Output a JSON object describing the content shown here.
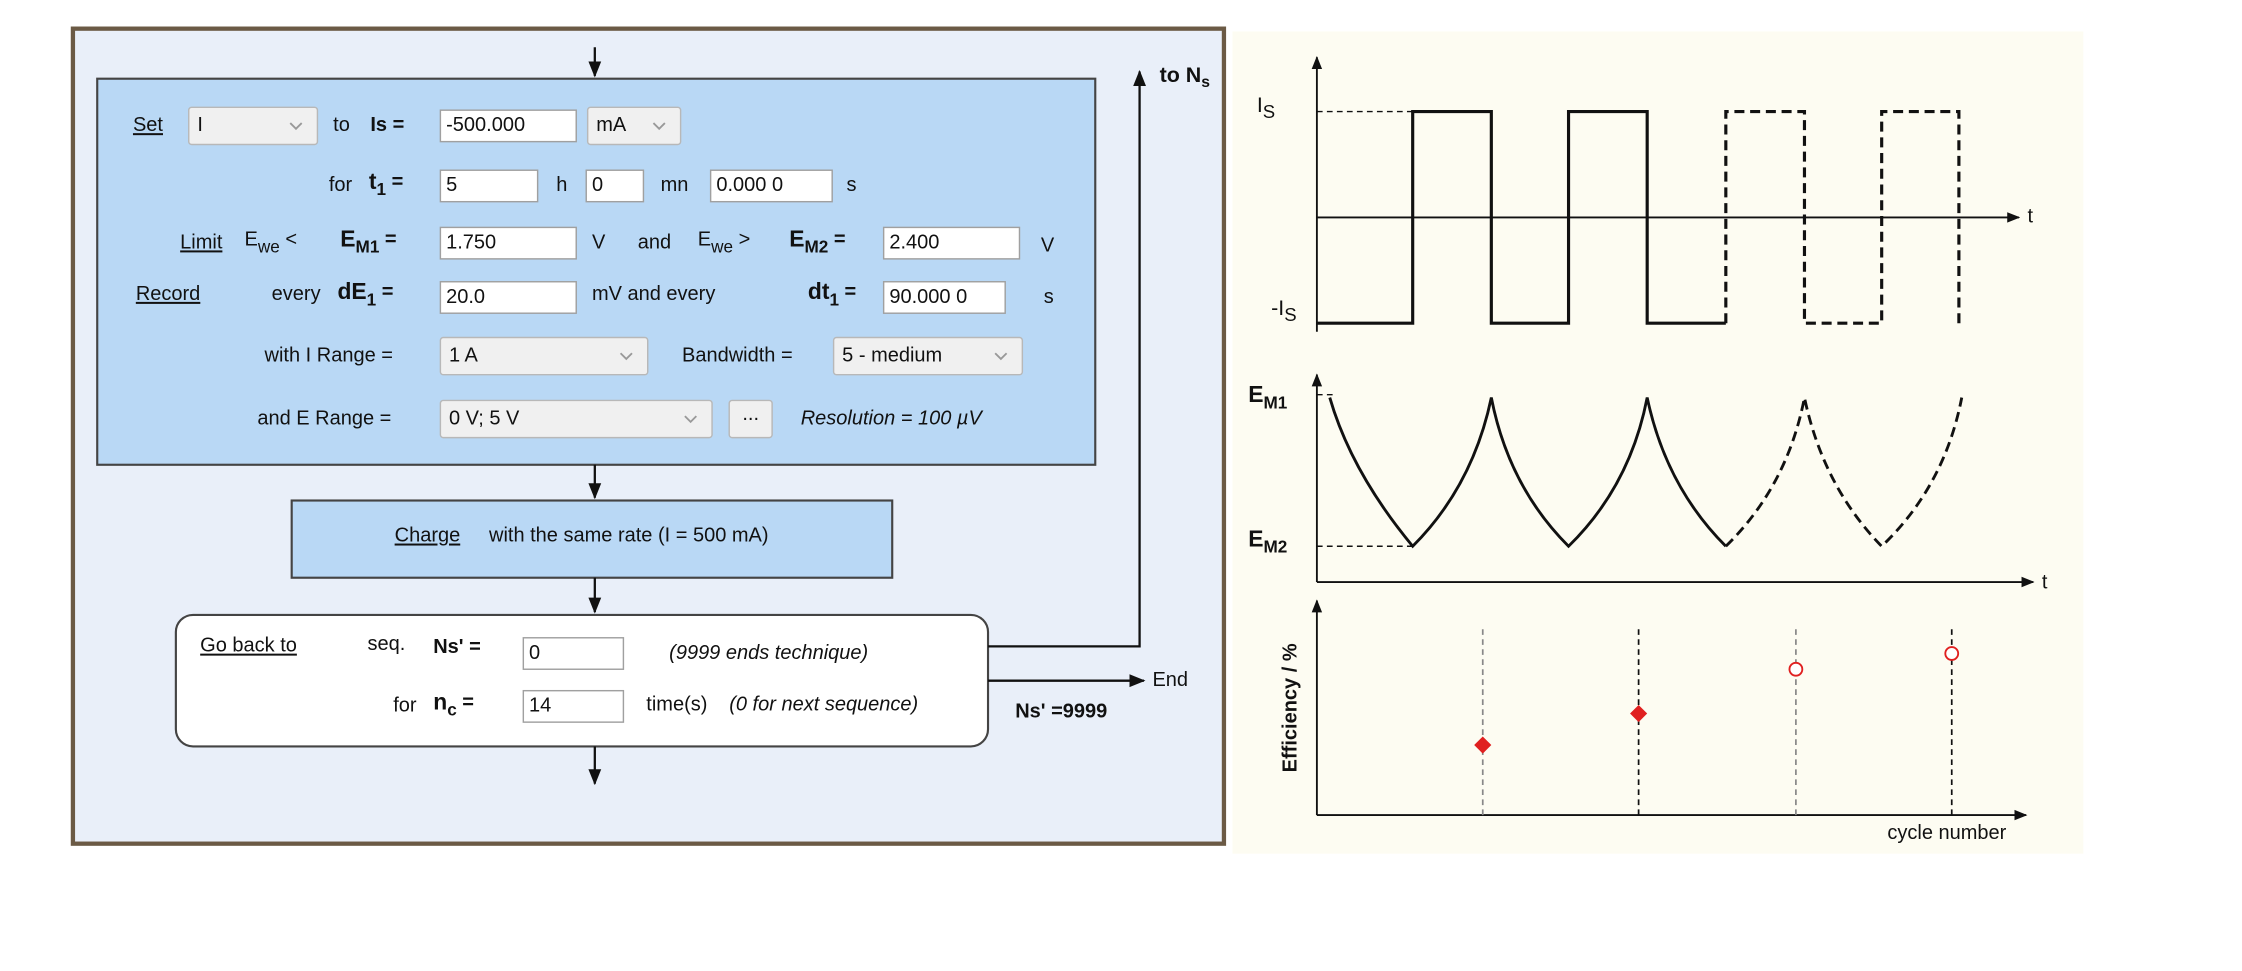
{
  "dialog": {
    "step": {
      "set": "Set",
      "control": "I",
      "to": "to",
      "is_label": "Is =",
      "is_value": "-500.000",
      "is_unit": "mA",
      "for": "for",
      "t1": {
        "main": "t",
        "sub": "1",
        "tail": " ="
      },
      "t1_h": "5",
      "h": "h",
      "t1_mn": "0",
      "mn": "mn",
      "t1_s": "0.000 0",
      "s": "s",
      "limit": "Limit",
      "ewe_lt": {
        "main": "E",
        "sub": "we",
        "tail": " <"
      },
      "em1": {
        "main": "E",
        "sub": "M1",
        "tail": " ="
      },
      "em1_value": "1.750",
      "em1_unit": "V",
      "and": "and",
      "ewe_gt": {
        "main": "E",
        "sub": "we",
        "tail": " >"
      },
      "em2": {
        "main": "E",
        "sub": "M2",
        "tail": " ="
      },
      "em2_value": "2.400",
      "em2_unit": "V",
      "record": "Record",
      "every": "every",
      "de1": {
        "main": "dE",
        "sub": "1",
        "tail": " ="
      },
      "de1_value": "20.0",
      "de1_unit": "mV and every",
      "dt1": {
        "main": "dt",
        "sub": "1",
        "tail": " ="
      },
      "dt1_value": "90.000 0",
      "dt1_unit": "s",
      "i_range_label": "with I Range =",
      "i_range": "1 A",
      "bandwidth_label": "Bandwidth =",
      "bandwidth": "5 - medium",
      "e_range_label": "and E Range =",
      "e_range": "0 V; 5 V",
      "more": "...",
      "resolution": "Resolution = 100 µV"
    },
    "charge": {
      "link": "Charge",
      "text": "with the same rate (I = 500 mA)"
    },
    "goback": {
      "link": "Go back to",
      "seq": "seq.",
      "ns_label": "Ns' =",
      "ns_value": "0",
      "ns_note": "(9999 ends technique)",
      "for": "for",
      "nc": {
        "main": "n",
        "sub": "c",
        "tail": " ="
      },
      "nc_value": "14",
      "times": "time(s)",
      "nc_note": "(0 for next sequence)"
    },
    "flow": {
      "to_ns": {
        "main": "to N",
        "sub": "s"
      },
      "end": "End",
      "ns_end": "Ns' =9999"
    }
  },
  "diagram": {
    "current": {
      "is": {
        "main": "I",
        "sub": "S"
      },
      "minus_is": {
        "main": "-I",
        "sub": "S"
      },
      "t": "t"
    },
    "potential": {
      "em1": {
        "main": "E",
        "sub": "M1"
      },
      "em2": {
        "main": "E",
        "sub": "M2"
      },
      "t": "t"
    },
    "efficiency": {
      "ylabel": "Efficiency / %",
      "xlabel": "cycle number"
    }
  }
}
